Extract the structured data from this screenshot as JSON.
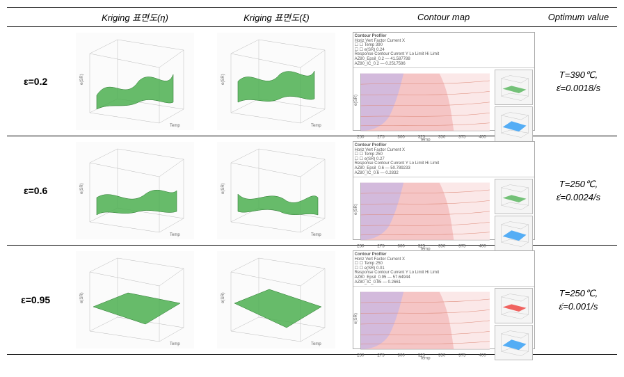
{
  "headers": {
    "col1": "",
    "col2": "Kriging 표면도(η)",
    "col3": "Kriging 표면도(ξ)",
    "col4": "Contour map",
    "col5": "Optimum value"
  },
  "rows": [
    {
      "label": "ε=0.2",
      "optimum": {
        "T": "T=390℃,",
        "e": "ε̇=0.0018/s"
      },
      "surface1": {
        "color": "#4caf50",
        "type": "wave1"
      },
      "surface2": {
        "color": "#4caf50",
        "type": "wave2"
      },
      "contour": {
        "title": "Contour Profiler",
        "meta": "Horiz Vert Factor  Current X\n☐  ☐  Temp   390\n☐  ☐  e(SR)   0.24\nResponse  Contour  Current Y  Lo Limit  Hi Limit\nAZ80_Epsil_0.2  —  41.587788\nAZ80_IC_0.2  —  0.2517586",
        "bg": "#f5c5c5",
        "overlay": "#c5b5e5",
        "xticks": [
          "250",
          "275",
          "300",
          "325",
          "350",
          "375",
          "400"
        ],
        "xlabel": "Temp",
        "ylabel": "e(SR)",
        "mini1_color": "#66bb6a",
        "mini2_color": "#42a5f5"
      }
    },
    {
      "label": "ε=0.6",
      "optimum": {
        "T": "T=250℃,",
        "e": "ε̇=0.0024/s"
      },
      "surface1": {
        "color": "#4caf50",
        "type": "fold1"
      },
      "surface2": {
        "color": "#4caf50",
        "type": "fold2"
      },
      "contour": {
        "title": "Contour Profiler",
        "meta": "Horiz Vert Factor  Current X\n☐  ☐  Temp   250\n☐  ☐  e(SR)   0.27\nResponse  Contour  Current Y  Lo Limit  Hi Limit\nAZ80_Epsil_0.6  —  50.789233\nAZ80_IC_0.6  —  0.2832",
        "bg": "#f5c5c5",
        "overlay": "#c5b5e5",
        "xticks": [
          "250",
          "275",
          "300",
          "325",
          "350",
          "375",
          "400"
        ],
        "xlabel": "Temp",
        "ylabel": "e(SR)",
        "mini1_color": "#66bb6a",
        "mini2_color": "#42a5f5"
      }
    },
    {
      "label": "ε=0.95",
      "optimum": {
        "T": "T=250℃,",
        "e": "ε̇=0.001/s"
      },
      "surface1": {
        "color": "#4caf50",
        "type": "flat1"
      },
      "surface2": {
        "color": "#4caf50",
        "type": "flat2"
      },
      "contour": {
        "title": "Contour Profiler",
        "meta": "Horiz Vert Factor  Current X\n☐  ☐  Temp   250\n☐  ☐  e(SR)   0.01\nResponse  Contour  Current Y  Lo Limit  Hi Limit\nAZ80_Epsil_0.95  —  57.64944\nAZ80_IC_0.95  —  0.2661",
        "bg": "#f5c5c5",
        "overlay": "#c5b5e5",
        "xticks": [
          "250",
          "275",
          "300",
          "325",
          "350",
          "375",
          "400"
        ],
        "xlabel": "Temp",
        "ylabel": "e(SR)",
        "mini1_color": "#ef5350",
        "mini2_color": "#42a5f5"
      }
    }
  ]
}
